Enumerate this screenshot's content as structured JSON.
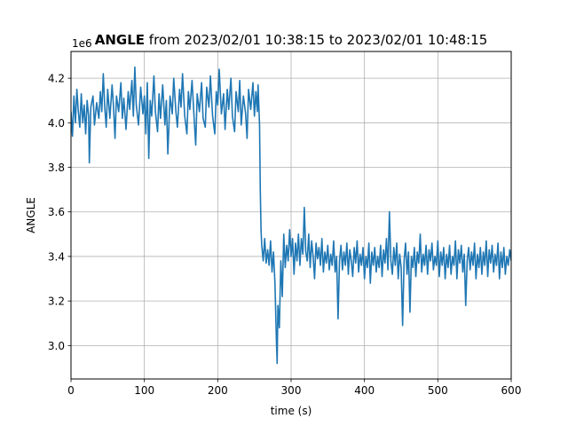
{
  "chart_data": {
    "type": "line",
    "title_bold": "ANGLE",
    "title_rest": " from 2023/02/01 10:38:15 to 2023/02/01 10:48:15",
    "xlabel": "time (s)",
    "ylabel": "ANGLE",
    "y_offset_label": "1e6",
    "xlim": [
      0,
      600
    ],
    "ylim": [
      2.85,
      4.32
    ],
    "x_ticks": [
      0,
      100,
      200,
      300,
      400,
      500,
      600
    ],
    "x_tick_labels": [
      "0",
      "100",
      "200",
      "300",
      "400",
      "500",
      "600"
    ],
    "y_ticks": [
      3.0,
      3.2,
      3.4,
      3.6,
      3.8,
      4.0,
      4.2
    ],
    "y_tick_labels": [
      "3.0",
      "3.2",
      "3.4",
      "3.6",
      "3.8",
      "4.0",
      "4.2"
    ],
    "grid": true,
    "line_color": "#1f77b4",
    "series": [
      {
        "points": [
          [
            0,
            4.05
          ],
          [
            2,
            3.94
          ],
          [
            4,
            4.12
          ],
          [
            6,
            4.0
          ],
          [
            8,
            4.15
          ],
          [
            10,
            4.05
          ],
          [
            12,
            3.98
          ],
          [
            14,
            4.13
          ],
          [
            16,
            4.0
          ],
          [
            18,
            4.08
          ],
          [
            20,
            3.95
          ],
          [
            22,
            4.1
          ],
          [
            24,
            4.03
          ],
          [
            25,
            3.82
          ],
          [
            27,
            4.07
          ],
          [
            30,
            4.12
          ],
          [
            32,
            3.99
          ],
          [
            35,
            4.09
          ],
          [
            38,
            4.02
          ],
          [
            40,
            4.14
          ],
          [
            42,
            4.05
          ],
          [
            44,
            4.22
          ],
          [
            46,
            4.07
          ],
          [
            48,
            3.98
          ],
          [
            50,
            4.15
          ],
          [
            53,
            4.02
          ],
          [
            56,
            4.17
          ],
          [
            58,
            4.07
          ],
          [
            60,
            3.93
          ],
          [
            62,
            4.12
          ],
          [
            65,
            4.05
          ],
          [
            68,
            4.18
          ],
          [
            70,
            4.02
          ],
          [
            72,
            4.11
          ],
          [
            75,
            3.97
          ],
          [
            78,
            4.14
          ],
          [
            80,
            4.06
          ],
          [
            83,
            4.19
          ],
          [
            85,
            4.03
          ],
          [
            87,
            4.25
          ],
          [
            89,
            4.08
          ],
          [
            92,
            3.99
          ],
          [
            95,
            4.16
          ],
          [
            98,
            4.04
          ],
          [
            100,
            4.12
          ],
          [
            102,
            3.95
          ],
          [
            104,
            4.18
          ],
          [
            106,
            3.84
          ],
          [
            108,
            4.1
          ],
          [
            110,
            4.03
          ],
          [
            113,
            4.21
          ],
          [
            115,
            4.05
          ],
          [
            118,
            3.96
          ],
          [
            120,
            4.13
          ],
          [
            122,
            4.02
          ],
          [
            125,
            4.17
          ],
          [
            128,
            3.99
          ],
          [
            130,
            4.1
          ],
          [
            132,
            3.86
          ],
          [
            135,
            4.12
          ],
          [
            138,
            4.04
          ],
          [
            140,
            4.2
          ],
          [
            143,
            4.05
          ],
          [
            145,
            3.98
          ],
          [
            148,
            4.15
          ],
          [
            150,
            4.07
          ],
          [
            152,
            4.22
          ],
          [
            155,
            4.03
          ],
          [
            158,
            3.95
          ],
          [
            160,
            4.14
          ],
          [
            162,
            4.06
          ],
          [
            165,
            4.19
          ],
          [
            168,
            4.01
          ],
          [
            170,
            3.9
          ],
          [
            172,
            4.13
          ],
          [
            175,
            4.05
          ],
          [
            178,
            4.18
          ],
          [
            180,
            4.02
          ],
          [
            183,
            3.98
          ],
          [
            185,
            4.16
          ],
          [
            188,
            4.07
          ],
          [
            190,
            4.21
          ],
          [
            193,
            4.03
          ],
          [
            196,
            3.95
          ],
          [
            198,
            4.14
          ],
          [
            200,
            4.08
          ],
          [
            202,
            4.24
          ],
          [
            205,
            4.04
          ],
          [
            208,
            4.13
          ],
          [
            210,
            3.97
          ],
          [
            213,
            4.15
          ],
          [
            215,
            4.06
          ],
          [
            218,
            4.2
          ],
          [
            220,
            4.03
          ],
          [
            223,
            3.96
          ],
          [
            225,
            4.14
          ],
          [
            228,
            4.05
          ],
          [
            230,
            4.19
          ],
          [
            232,
            3.99
          ],
          [
            235,
            4.12
          ],
          [
            238,
            4.04
          ],
          [
            240,
            3.93
          ],
          [
            242,
            4.15
          ],
          [
            245,
            4.06
          ],
          [
            248,
            4.18
          ],
          [
            250,
            4.03
          ],
          [
            252,
            4.14
          ],
          [
            254,
            4.05
          ],
          [
            255,
            4.17
          ],
          [
            256,
            4.08
          ],
          [
            257,
            3.99
          ],
          [
            258,
            3.7
          ],
          [
            259,
            3.52
          ],
          [
            260,
            3.45
          ],
          [
            262,
            3.38
          ],
          [
            264,
            3.48
          ],
          [
            266,
            3.37
          ],
          [
            268,
            3.43
          ],
          [
            270,
            3.36
          ],
          [
            272,
            3.47
          ],
          [
            274,
            3.33
          ],
          [
            276,
            3.42
          ],
          [
            278,
            3.28
          ],
          [
            280,
            3.02
          ],
          [
            281,
            2.92
          ],
          [
            282,
            3.18
          ],
          [
            284,
            3.08
          ],
          [
            286,
            3.38
          ],
          [
            288,
            3.22
          ],
          [
            290,
            3.5
          ],
          [
            292,
            3.35
          ],
          [
            294,
            3.45
          ],
          [
            296,
            3.38
          ],
          [
            298,
            3.52
          ],
          [
            300,
            3.4
          ],
          [
            302,
            3.48
          ],
          [
            304,
            3.32
          ],
          [
            306,
            3.46
          ],
          [
            308,
            3.38
          ],
          [
            310,
            3.5
          ],
          [
            312,
            3.36
          ],
          [
            314,
            3.48
          ],
          [
            316,
            3.41
          ],
          [
            318,
            3.62
          ],
          [
            320,
            3.42
          ],
          [
            322,
            3.38
          ],
          [
            324,
            3.5
          ],
          [
            326,
            3.35
          ],
          [
            328,
            3.47
          ],
          [
            330,
            3.4
          ],
          [
            332,
            3.3
          ],
          [
            334,
            3.46
          ],
          [
            336,
            3.39
          ],
          [
            338,
            3.44
          ],
          [
            340,
            3.36
          ],
          [
            342,
            3.48
          ],
          [
            344,
            3.33
          ],
          [
            346,
            3.42
          ],
          [
            348,
            3.37
          ],
          [
            350,
            3.45
          ],
          [
            352,
            3.34
          ],
          [
            354,
            3.41
          ],
          [
            356,
            3.36
          ],
          [
            358,
            3.47
          ],
          [
            360,
            3.33
          ],
          [
            362,
            3.4
          ],
          [
            364,
            3.12
          ],
          [
            366,
            3.38
          ],
          [
            368,
            3.45
          ],
          [
            370,
            3.34
          ],
          [
            372,
            3.42
          ],
          [
            374,
            3.36
          ],
          [
            376,
            3.46
          ],
          [
            378,
            3.32
          ],
          [
            380,
            3.43
          ],
          [
            382,
            3.38
          ],
          [
            384,
            3.31
          ],
          [
            386,
            3.44
          ],
          [
            388,
            3.37
          ],
          [
            390,
            3.47
          ],
          [
            392,
            3.33
          ],
          [
            394,
            3.41
          ],
          [
            396,
            3.36
          ],
          [
            398,
            3.44
          ],
          [
            400,
            3.3
          ],
          [
            402,
            3.4
          ],
          [
            404,
            3.35
          ],
          [
            406,
            3.46
          ],
          [
            408,
            3.28
          ],
          [
            410,
            3.42
          ],
          [
            412,
            3.36
          ],
          [
            414,
            3.44
          ],
          [
            416,
            3.33
          ],
          [
            418,
            3.4
          ],
          [
            420,
            3.35
          ],
          [
            422,
            3.45
          ],
          [
            424,
            3.31
          ],
          [
            426,
            3.43
          ],
          [
            428,
            3.37
          ],
          [
            430,
            3.48
          ],
          [
            432,
            3.34
          ],
          [
            434,
            3.6
          ],
          [
            436,
            3.38
          ],
          [
            438,
            3.32
          ],
          [
            440,
            3.44
          ],
          [
            442,
            3.36
          ],
          [
            444,
            3.46
          ],
          [
            446,
            3.3
          ],
          [
            448,
            3.41
          ],
          [
            450,
            3.35
          ],
          [
            452,
            3.09
          ],
          [
            454,
            3.38
          ],
          [
            456,
            3.46
          ],
          [
            458,
            3.32
          ],
          [
            460,
            3.42
          ],
          [
            462,
            3.15
          ],
          [
            464,
            3.4
          ],
          [
            466,
            3.35
          ],
          [
            468,
            3.44
          ],
          [
            470,
            3.31
          ],
          [
            472,
            3.42
          ],
          [
            474,
            3.37
          ],
          [
            476,
            3.5
          ],
          [
            478,
            3.33
          ],
          [
            480,
            3.41
          ],
          [
            482,
            3.36
          ],
          [
            484,
            3.45
          ],
          [
            486,
            3.32
          ],
          [
            488,
            3.43
          ],
          [
            490,
            3.38
          ],
          [
            492,
            3.46
          ],
          [
            494,
            3.34
          ],
          [
            496,
            3.4
          ],
          [
            498,
            3.36
          ],
          [
            500,
            3.47
          ],
          [
            502,
            3.31
          ],
          [
            504,
            3.42
          ],
          [
            506,
            3.36
          ],
          [
            508,
            3.44
          ],
          [
            510,
            3.3
          ],
          [
            512,
            3.41
          ],
          [
            514,
            3.35
          ],
          [
            516,
            3.45
          ],
          [
            518,
            3.32
          ],
          [
            520,
            3.4
          ],
          [
            522,
            3.36
          ],
          [
            524,
            3.47
          ],
          [
            526,
            3.3
          ],
          [
            528,
            3.43
          ],
          [
            530,
            3.37
          ],
          [
            532,
            3.45
          ],
          [
            534,
            3.33
          ],
          [
            536,
            3.41
          ],
          [
            538,
            3.18
          ],
          [
            540,
            3.38
          ],
          [
            542,
            3.44
          ],
          [
            544,
            3.34
          ],
          [
            546,
            3.42
          ],
          [
            548,
            3.36
          ],
          [
            550,
            3.46
          ],
          [
            552,
            3.3
          ],
          [
            554,
            3.41
          ],
          [
            556,
            3.35
          ],
          [
            558,
            3.44
          ],
          [
            560,
            3.32
          ],
          [
            562,
            3.42
          ],
          [
            564,
            3.36
          ],
          [
            566,
            3.47
          ],
          [
            568,
            3.31
          ],
          [
            570,
            3.43
          ],
          [
            572,
            3.37
          ],
          [
            574,
            3.45
          ],
          [
            576,
            3.33
          ],
          [
            578,
            3.41
          ],
          [
            580,
            3.36
          ],
          [
            582,
            3.46
          ],
          [
            584,
            3.3
          ],
          [
            586,
            3.42
          ],
          [
            588,
            3.35
          ],
          [
            590,
            3.44
          ],
          [
            592,
            3.32
          ],
          [
            594,
            3.4
          ],
          [
            596,
            3.36
          ],
          [
            598,
            3.43
          ],
          [
            600,
            3.38
          ]
        ]
      }
    ]
  }
}
